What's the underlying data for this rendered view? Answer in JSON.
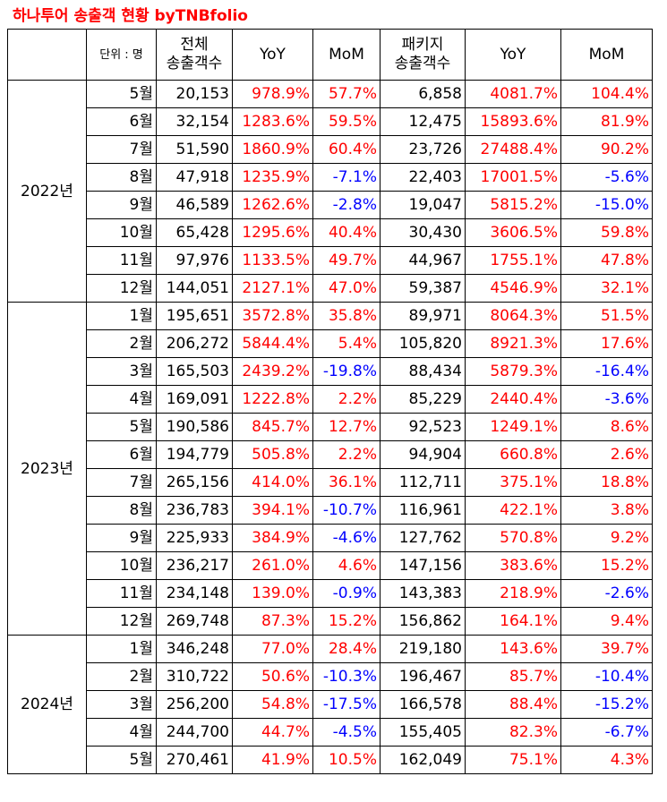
{
  "title": "하나투어 송출객 현황 byTNBfolio",
  "colors": {
    "positive": "#ff0000",
    "negative": "#0000ff",
    "title": "#ff0000"
  },
  "headers": {
    "unit": "단위 : 명",
    "total_line1": "전체",
    "total_line2": "송출객수",
    "yoy": "YoY",
    "mom": "MoM",
    "package_line1": "패키지",
    "package_line2": "송출객수",
    "pkg_yoy": "YoY",
    "pkg_mom": "MoM"
  },
  "groups": [
    {
      "year": "2022년",
      "rows": [
        [
          "5월",
          "20,153",
          "978.9%",
          "57.7%",
          "6,858",
          "4081.7%",
          "104.4%"
        ],
        [
          "6월",
          "32,154",
          "1283.6%",
          "59.5%",
          "12,475",
          "15893.6%",
          "81.9%"
        ],
        [
          "7월",
          "51,590",
          "1860.9%",
          "60.4%",
          "23,726",
          "27488.4%",
          "90.2%"
        ],
        [
          "8월",
          "47,918",
          "1235.9%",
          "-7.1%",
          "22,403",
          "17001.5%",
          "-5.6%"
        ],
        [
          "9월",
          "46,589",
          "1262.6%",
          "-2.8%",
          "19,047",
          "5815.2%",
          "-15.0%"
        ],
        [
          "10월",
          "65,428",
          "1295.6%",
          "40.4%",
          "30,430",
          "3606.5%",
          "59.8%"
        ],
        [
          "11월",
          "97,976",
          "1133.5%",
          "49.7%",
          "44,967",
          "1755.1%",
          "47.8%"
        ],
        [
          "12월",
          "144,051",
          "2127.1%",
          "47.0%",
          "59,387",
          "4546.9%",
          "32.1%"
        ]
      ]
    },
    {
      "year": "2023년",
      "rows": [
        [
          "1월",
          "195,651",
          "3572.8%",
          "35.8%",
          "89,971",
          "8064.3%",
          "51.5%"
        ],
        [
          "2월",
          "206,272",
          "5844.4%",
          "5.4%",
          "105,820",
          "8921.3%",
          "17.6%"
        ],
        [
          "3월",
          "165,503",
          "2439.2%",
          "-19.8%",
          "88,434",
          "5879.3%",
          "-16.4%"
        ],
        [
          "4월",
          "169,091",
          "1222.8%",
          "2.2%",
          "85,229",
          "2440.4%",
          "-3.6%"
        ],
        [
          "5월",
          "190,586",
          "845.7%",
          "12.7%",
          "92,523",
          "1249.1%",
          "8.6%"
        ],
        [
          "6월",
          "194,779",
          "505.8%",
          "2.2%",
          "94,904",
          "660.8%",
          "2.6%"
        ],
        [
          "7월",
          "265,156",
          "414.0%",
          "36.1%",
          "112,711",
          "375.1%",
          "18.8%"
        ],
        [
          "8월",
          "236,783",
          "394.1%",
          "-10.7%",
          "116,961",
          "422.1%",
          "3.8%"
        ],
        [
          "9월",
          "225,933",
          "384.9%",
          "-4.6%",
          "127,762",
          "570.8%",
          "9.2%"
        ],
        [
          "10월",
          "236,217",
          "261.0%",
          "4.6%",
          "147,156",
          "383.6%",
          "15.2%"
        ],
        [
          "11월",
          "234,148",
          "139.0%",
          "-0.9%",
          "143,383",
          "218.9%",
          "-2.6%"
        ],
        [
          "12월",
          "269,748",
          "87.3%",
          "15.2%",
          "156,862",
          "164.1%",
          "9.4%"
        ]
      ]
    },
    {
      "year": "2024년",
      "rows": [
        [
          "1월",
          "346,248",
          "77.0%",
          "28.4%",
          "219,180",
          "143.6%",
          "39.7%"
        ],
        [
          "2월",
          "310,722",
          "50.6%",
          "-10.3%",
          "196,467",
          "85.7%",
          "-10.4%"
        ],
        [
          "3월",
          "256,200",
          "54.8%",
          "-17.5%",
          "166,578",
          "88.4%",
          "-15.2%"
        ],
        [
          "4월",
          "244,700",
          "44.7%",
          "-4.5%",
          "155,405",
          "82.3%",
          "-6.7%"
        ],
        [
          "5월",
          "270,461",
          "41.9%",
          "10.5%",
          "162,049",
          "75.1%",
          "4.3%"
        ]
      ]
    }
  ]
}
